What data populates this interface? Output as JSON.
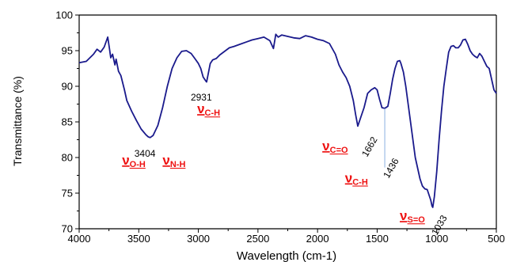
{
  "chart_data": {
    "type": "line",
    "xlabel": "Wavelength (cm-1)",
    "ylabel": "Transmittance (%)",
    "xlim": [
      4000,
      500
    ],
    "ylim": [
      70,
      100
    ],
    "x_ticks": [
      "4000",
      "3500",
      "3000",
      "2500",
      "2000",
      "1500",
      "1000",
      "500"
    ],
    "y_ticks": [
      "70",
      "75",
      "80",
      "85",
      "90",
      "95",
      "100"
    ],
    "grid": false,
    "line_color": "#1a1a8c",
    "series": [
      {
        "x": [
          4000,
          3940,
          3880,
          3850,
          3820,
          3790,
          3760,
          3745,
          3735,
          3720,
          3700,
          3690,
          3670,
          3650,
          3620,
          3600,
          3560,
          3520,
          3480,
          3440,
          3420,
          3404,
          3380,
          3340,
          3300,
          3260,
          3220,
          3180,
          3140,
          3100,
          3060,
          3030,
          3000,
          2980,
          2960,
          2940,
          2931,
          2920,
          2900,
          2880,
          2850,
          2820,
          2780,
          2740,
          2700,
          2650,
          2600,
          2550,
          2500,
          2450,
          2400,
          2370,
          2350,
          2330,
          2300,
          2250,
          2200,
          2150,
          2100,
          2050,
          2000,
          1950,
          1900,
          1850,
          1820,
          1790,
          1760,
          1730,
          1700,
          1680,
          1662,
          1640,
          1610,
          1580,
          1550,
          1520,
          1500,
          1480,
          1460,
          1436,
          1410,
          1390,
          1370,
          1350,
          1330,
          1310,
          1300,
          1280,
          1260,
          1240,
          1220,
          1200,
          1180,
          1160,
          1140,
          1120,
          1100,
          1080,
          1060,
          1050,
          1040,
          1033,
          1020,
          1000,
          980,
          960,
          940,
          920,
          900,
          880,
          860,
          840,
          820,
          800,
          780,
          760,
          740,
          720,
          700,
          680,
          660,
          640,
          620,
          600,
          580,
          560,
          540,
          520,
          500
        ],
        "y": [
          93.3,
          93.5,
          94.5,
          95.2,
          94.8,
          95.5,
          96.9,
          95.2,
          94.0,
          94.5,
          93.0,
          93.8,
          92.1,
          91.5,
          89.5,
          88.0,
          86.5,
          85.2,
          84.0,
          83.2,
          82.9,
          82.8,
          83.1,
          84.5,
          87.0,
          90.0,
          92.5,
          94.0,
          94.9,
          95.0,
          94.6,
          93.9,
          93.2,
          92.5,
          91.3,
          90.8,
          90.6,
          91.5,
          93.2,
          93.7,
          93.9,
          94.4,
          94.9,
          95.4,
          95.6,
          95.9,
          96.2,
          96.5,
          96.7,
          96.9,
          96.4,
          95.3,
          97.3,
          96.9,
          97.2,
          97.0,
          96.8,
          96.7,
          97.1,
          96.9,
          96.6,
          96.4,
          96.0,
          94.5,
          93.0,
          92.0,
          91.2,
          90.0,
          88.0,
          86.0,
          84.4,
          85.5,
          87.0,
          89.0,
          89.5,
          89.8,
          89.5,
          88.2,
          87.0,
          86.9,
          87.2,
          89.0,
          91.0,
          92.5,
          93.5,
          93.6,
          93.2,
          92.0,
          90.0,
          87.5,
          85.0,
          82.5,
          80.0,
          78.5,
          77.0,
          76.0,
          75.6,
          75.5,
          74.5,
          74.0,
          73.2,
          73.0,
          74.5,
          78.0,
          82.5,
          86.5,
          90.0,
          92.5,
          94.8,
          95.6,
          95.7,
          95.4,
          95.4,
          95.8,
          96.5,
          96.6,
          95.9,
          95.0,
          94.5,
          94.2,
          94.0,
          94.6,
          94.2,
          93.5,
          92.8,
          92.5,
          91.0,
          89.5,
          89.0
        ]
      }
    ],
    "annotations": [
      {
        "text": "3404",
        "x": 3404,
        "y": 82.8
      },
      {
        "text": "2931",
        "x": 2931,
        "y": 90.6
      },
      {
        "text": "1662",
        "x": 1662,
        "y": 84.4
      },
      {
        "text": "1436",
        "x": 1436,
        "y": 86.9
      },
      {
        "text": "1033",
        "x": 1033,
        "y": 73.0
      }
    ],
    "band_labels": [
      {
        "nu": "ν",
        "sub": "O-H"
      },
      {
        "nu": "ν",
        "sub": "N-H"
      },
      {
        "nu": "ν",
        "sub": "C-H"
      },
      {
        "nu": "ν",
        "sub": "C=O"
      },
      {
        "nu": "ν",
        "sub": "C-H"
      },
      {
        "nu": "ν",
        "sub": "S=O"
      }
    ],
    "label_color": "#ee1111"
  }
}
